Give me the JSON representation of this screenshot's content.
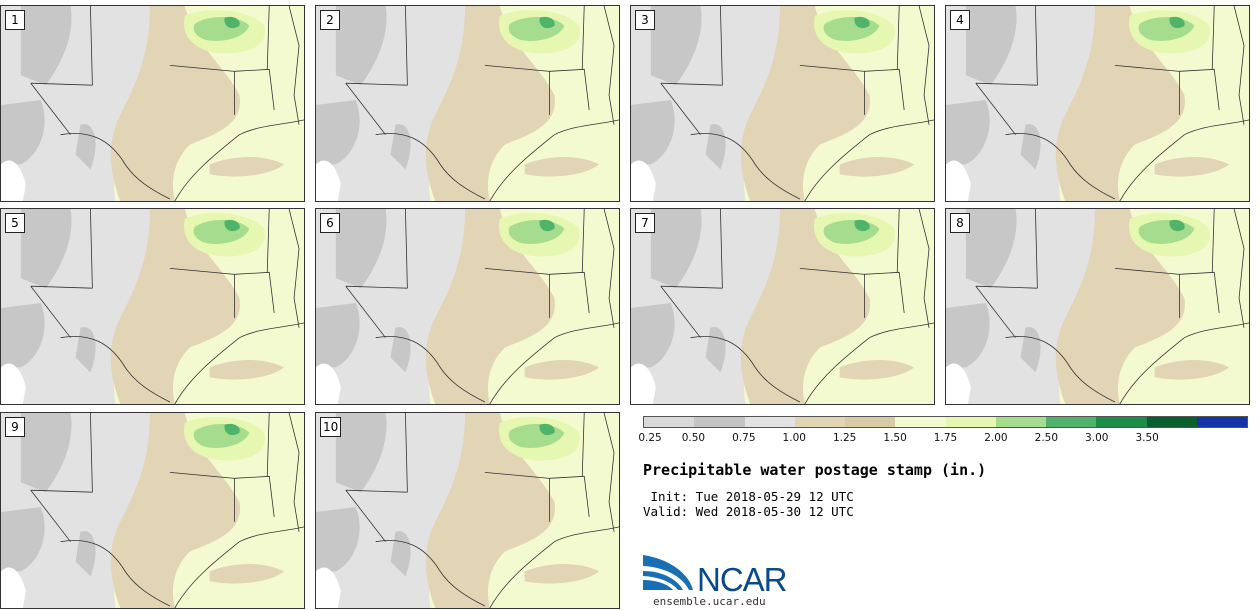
{
  "panels": [
    {
      "label": "1"
    },
    {
      "label": "2"
    },
    {
      "label": "3"
    },
    {
      "label": "4"
    },
    {
      "label": "5"
    },
    {
      "label": "6"
    },
    {
      "label": "7"
    },
    {
      "label": "8"
    },
    {
      "label": "9"
    },
    {
      "label": "10"
    }
  ],
  "colorbar": {
    "colors": [
      "#d9d9d9",
      "#c4c4c4",
      "#e2e2e2",
      "#e2d5b5",
      "#d9cba5",
      "#f4fad0",
      "#e6f7b2",
      "#a6dc8e",
      "#4fb36a",
      "#1d8c46",
      "#0b5e2d",
      "#1633a8"
    ],
    "ticks": [
      "0.25",
      "0.50",
      "0.75",
      "1.00",
      "1.25",
      "1.50",
      "1.75",
      "2.00",
      "2.50",
      "3.00",
      "3.50"
    ]
  },
  "title": "Precipitable water postage stamp (in.)",
  "init_line": " Init: Tue 2018-05-29 12 UTC",
  "valid_line": "Valid: Wed 2018-05-30 12 UTC",
  "logo": {
    "text": "NCAR",
    "url": "ensemble.ucar.edu"
  }
}
